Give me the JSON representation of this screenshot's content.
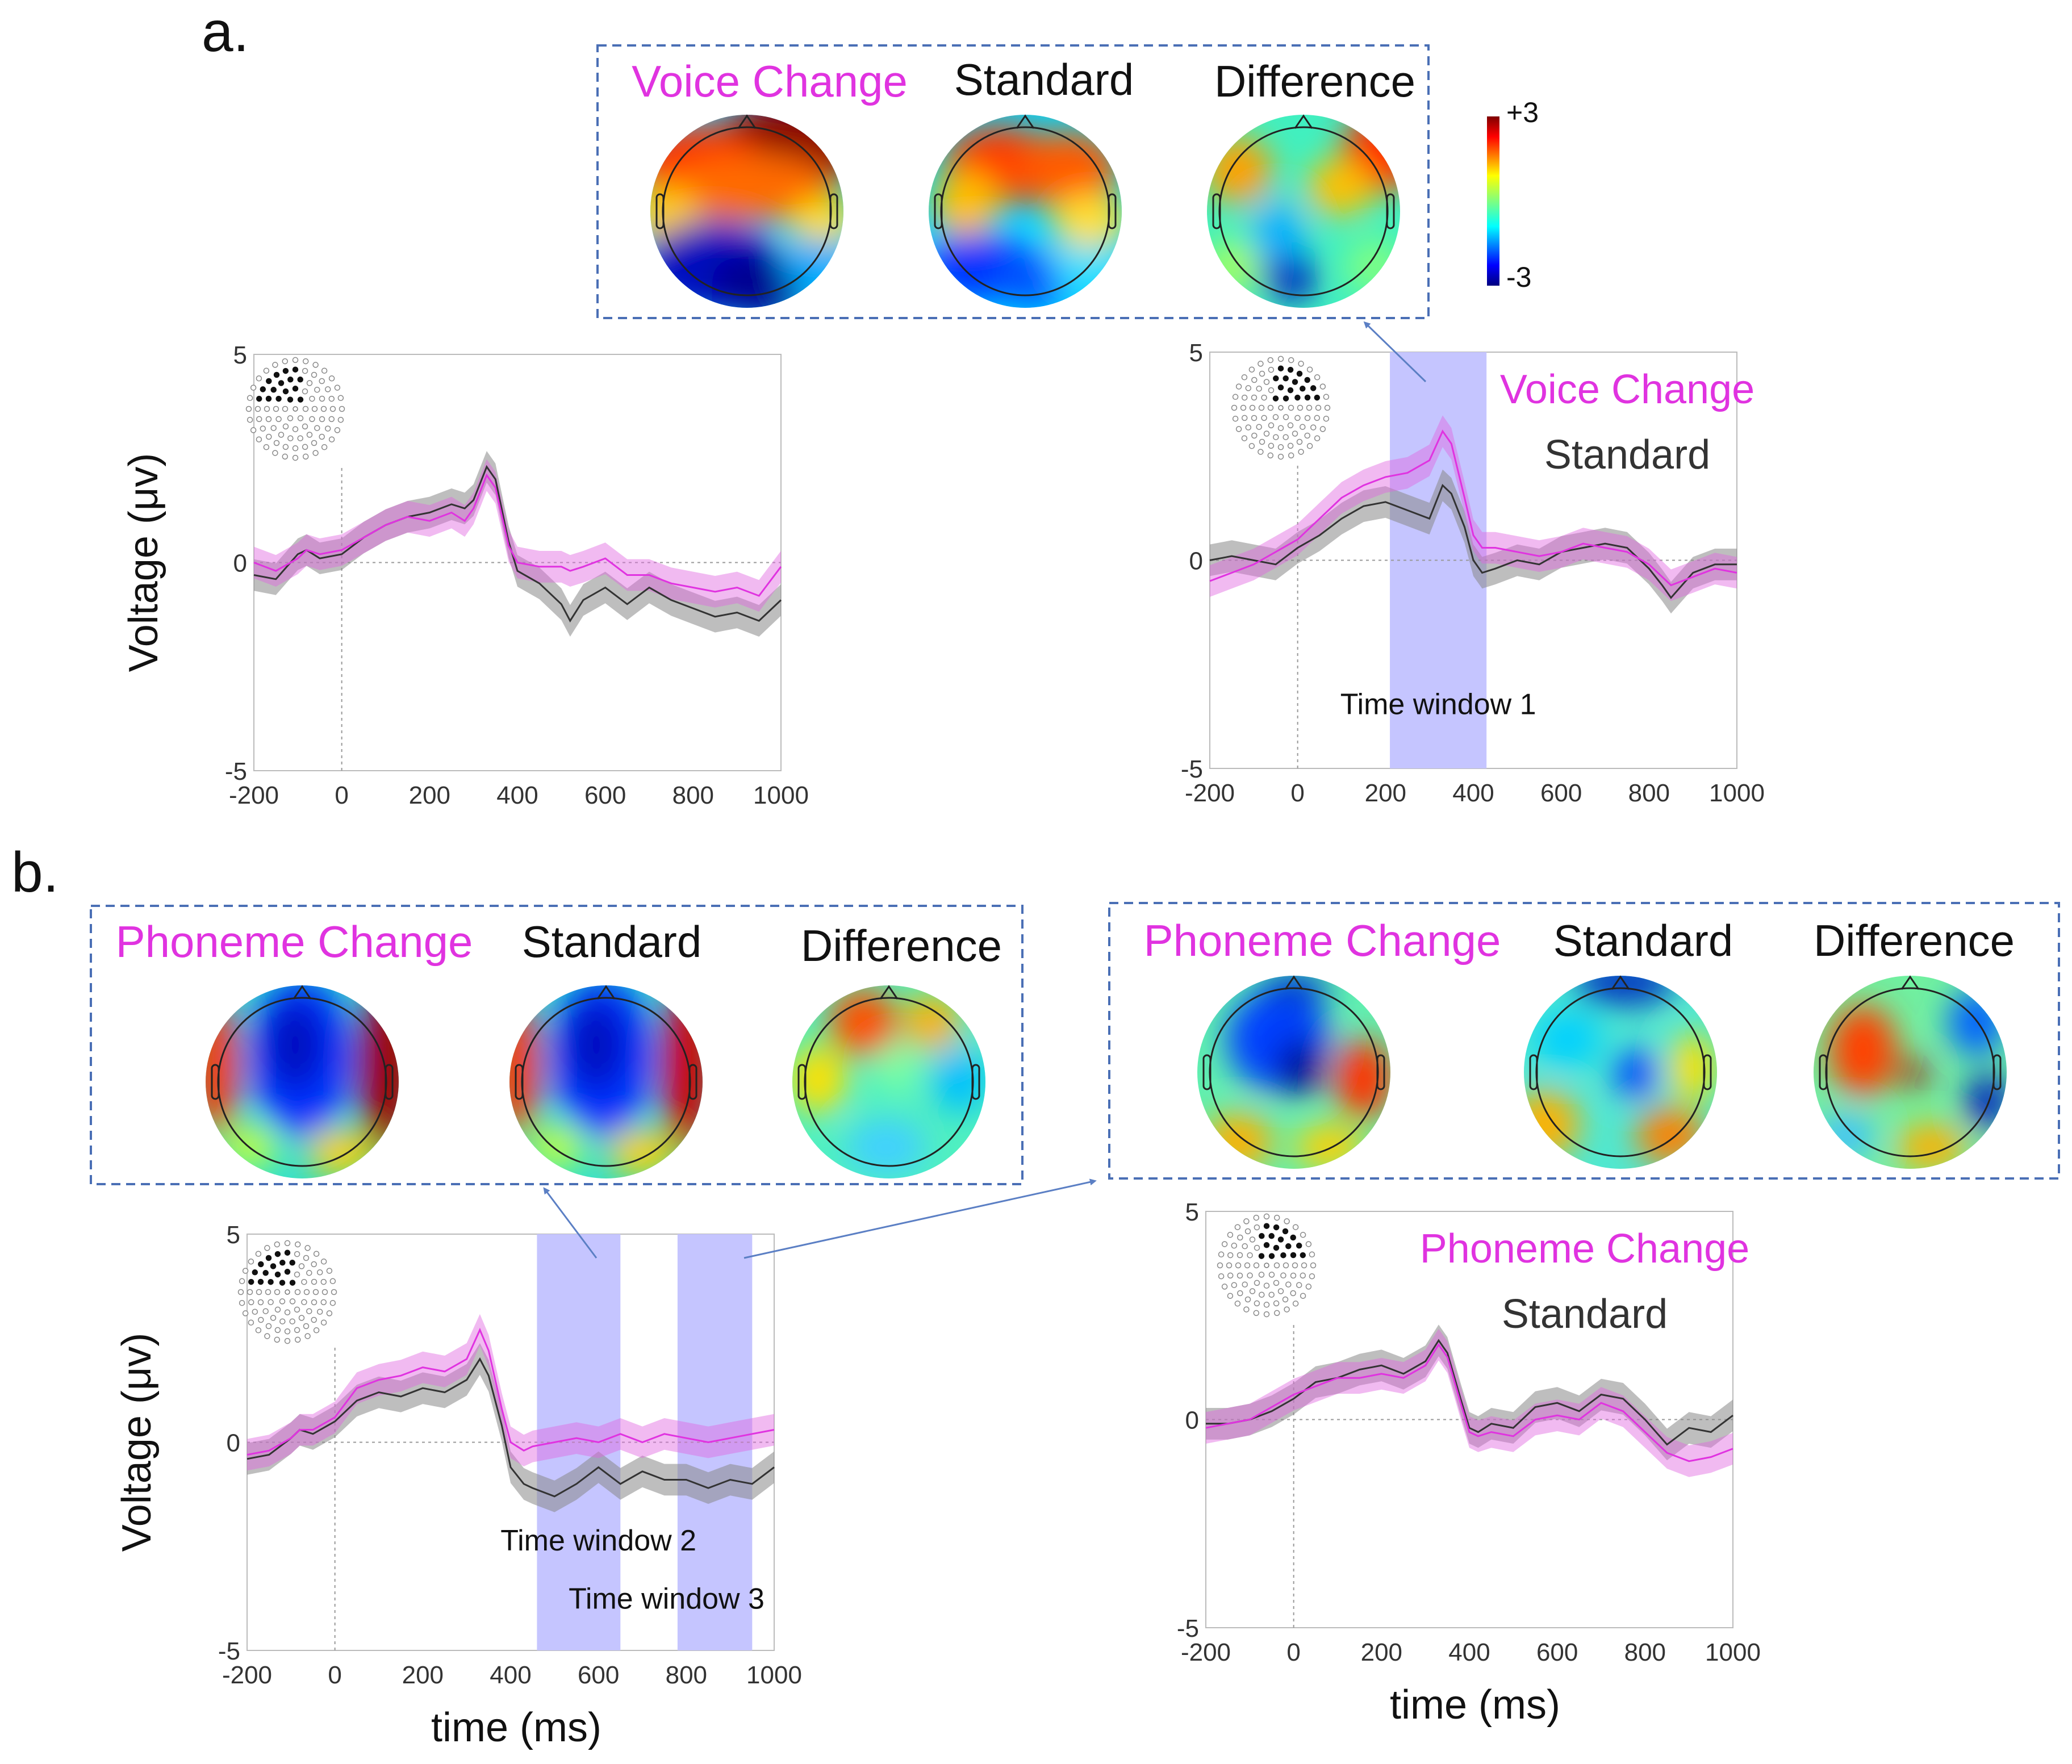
{
  "colors": {
    "magenta": "#e033e0",
    "black_trace": "#333333",
    "window": "#c5c5ff",
    "box_border": "#4a6fb5",
    "arrow": "#5b7fc4"
  },
  "panel_a": {
    "label": "a.",
    "topo_box_titles": [
      "Voice Change",
      "Standard",
      "Difference"
    ],
    "colorbar": {
      "max_label": "+3",
      "min_label": "-3"
    }
  },
  "panel_b": {
    "label": "b.",
    "topo_box_left_titles": [
      "Phoneme Change",
      "Standard",
      "Difference"
    ],
    "topo_box_right_titles": [
      "Phoneme Change",
      "Standard",
      "Difference"
    ]
  },
  "chart_data": [
    {
      "id": "a-left",
      "type": "line",
      "title": "",
      "xlabel": "",
      "ylabel": "Voltage (μv)",
      "xlim": [
        -200,
        1000
      ],
      "ylim": [
        -5,
        5
      ],
      "xticks": [
        "-200",
        "0",
        "200",
        "400",
        "600",
        "800",
        "1000"
      ],
      "yticks": [
        "-5",
        "0",
        "5"
      ],
      "windows": [],
      "legend": [],
      "electrode_side": "left",
      "series": [
        {
          "name": "Standard",
          "color": "#333333",
          "x": [
            -200,
            -150,
            -100,
            -80,
            -50,
            0,
            50,
            100,
            150,
            200,
            250,
            280,
            300,
            330,
            350,
            380,
            400,
            450,
            500,
            520,
            550,
            600,
            650,
            700,
            750,
            800,
            850,
            900,
            950,
            1000
          ],
          "y": [
            -0.3,
            -0.4,
            0.2,
            0.3,
            0.1,
            0.2,
            0.6,
            0.9,
            1.1,
            1.2,
            1.4,
            1.3,
            1.5,
            2.3,
            2.0,
            0.5,
            -0.2,
            -0.5,
            -1.0,
            -1.4,
            -0.9,
            -0.6,
            -1.0,
            -0.6,
            -0.9,
            -1.1,
            -1.3,
            -1.2,
            -1.4,
            -0.9
          ]
        },
        {
          "name": "Voice Change",
          "color": "#e033e0",
          "x": [
            -200,
            -150,
            -100,
            -80,
            -50,
            0,
            50,
            100,
            150,
            200,
            250,
            280,
            300,
            330,
            350,
            380,
            400,
            450,
            500,
            520,
            550,
            600,
            650,
            700,
            750,
            800,
            850,
            900,
            950,
            1000
          ],
          "y": [
            0.0,
            -0.2,
            0.1,
            0.3,
            0.2,
            0.3,
            0.6,
            0.9,
            1.1,
            1.0,
            1.2,
            1.0,
            1.3,
            2.1,
            1.8,
            0.4,
            0.0,
            -0.1,
            -0.1,
            -0.2,
            -0.1,
            0.1,
            -0.3,
            -0.3,
            -0.5,
            -0.6,
            -0.7,
            -0.6,
            -0.8,
            -0.1
          ]
        }
      ]
    },
    {
      "id": "a-right",
      "type": "line",
      "title": "",
      "xlabel": "",
      "ylabel": "",
      "xlim": [
        -200,
        1000
      ],
      "ylim": [
        -5,
        5
      ],
      "xticks": [
        "-200",
        "0",
        "200",
        "400",
        "600",
        "800",
        "1000"
      ],
      "yticks": [
        "-5",
        "0",
        "5"
      ],
      "windows": [
        {
          "from": 210,
          "to": 430,
          "label": "Time window 1"
        }
      ],
      "legend": [
        "Voice Change",
        "Standard"
      ],
      "electrode_side": "right",
      "series": [
        {
          "name": "Standard",
          "color": "#333333",
          "x": [
            -200,
            -150,
            -100,
            -50,
            0,
            50,
            100,
            150,
            200,
            250,
            300,
            330,
            350,
            380,
            400,
            420,
            450,
            500,
            550,
            600,
            650,
            700,
            750,
            800,
            830,
            850,
            900,
            950,
            1000
          ],
          "y": [
            0.0,
            0.1,
            0.0,
            -0.1,
            0.3,
            0.6,
            1.0,
            1.3,
            1.4,
            1.2,
            1.0,
            1.8,
            1.6,
            0.8,
            0.0,
            -0.3,
            -0.2,
            0.0,
            -0.1,
            0.2,
            0.3,
            0.4,
            0.3,
            -0.2,
            -0.6,
            -0.9,
            -0.3,
            -0.1,
            -0.1
          ]
        },
        {
          "name": "Voice Change",
          "color": "#e033e0",
          "x": [
            -200,
            -150,
            -100,
            -50,
            0,
            50,
            100,
            150,
            200,
            250,
            300,
            330,
            350,
            380,
            400,
            420,
            450,
            500,
            550,
            600,
            650,
            700,
            750,
            800,
            830,
            850,
            900,
            950,
            1000
          ],
          "y": [
            -0.5,
            -0.3,
            -0.1,
            0.2,
            0.5,
            1.0,
            1.5,
            1.8,
            2.0,
            2.1,
            2.4,
            3.1,
            2.8,
            1.5,
            0.6,
            0.3,
            0.3,
            0.2,
            0.1,
            0.2,
            0.4,
            0.3,
            0.2,
            -0.1,
            -0.4,
            -0.6,
            -0.4,
            -0.2,
            -0.3
          ]
        }
      ]
    },
    {
      "id": "b-left",
      "type": "line",
      "title": "",
      "xlabel": "time (ms)",
      "ylabel": "Voltage (μv)",
      "xlim": [
        -200,
        1000
      ],
      "ylim": [
        -5,
        5
      ],
      "xticks": [
        "-200",
        "0",
        "200",
        "400",
        "600",
        "800",
        "1000"
      ],
      "yticks": [
        "-5",
        "0",
        "5"
      ],
      "windows": [
        {
          "from": 460,
          "to": 650,
          "label": "Time window 2"
        },
        {
          "from": 780,
          "to": 950,
          "label": "Time window 3"
        }
      ],
      "legend": [],
      "electrode_side": "left",
      "series": [
        {
          "name": "Standard",
          "color": "#333333",
          "x": [
            -200,
            -150,
            -100,
            -80,
            -50,
            0,
            50,
            100,
            150,
            200,
            250,
            300,
            330,
            350,
            380,
            400,
            430,
            450,
            500,
            550,
            600,
            650,
            700,
            750,
            800,
            850,
            900,
            950,
            1000
          ],
          "y": [
            -0.4,
            -0.3,
            0.1,
            0.3,
            0.2,
            0.5,
            1.0,
            1.2,
            1.1,
            1.3,
            1.2,
            1.5,
            2.0,
            1.6,
            0.4,
            -0.6,
            -1.0,
            -1.1,
            -1.3,
            -1.0,
            -0.6,
            -1.0,
            -0.7,
            -0.9,
            -0.9,
            -1.1,
            -0.9,
            -1.0,
            -0.6
          ]
        },
        {
          "name": "Phoneme Change",
          "color": "#e033e0",
          "x": [
            -200,
            -150,
            -100,
            -80,
            -50,
            0,
            50,
            100,
            150,
            200,
            250,
            300,
            330,
            350,
            380,
            400,
            430,
            450,
            500,
            550,
            600,
            650,
            700,
            750,
            800,
            850,
            900,
            950,
            1000
          ],
          "y": [
            -0.3,
            -0.2,
            0.1,
            0.3,
            0.3,
            0.6,
            1.3,
            1.5,
            1.6,
            1.8,
            1.7,
            2.0,
            2.7,
            2.2,
            0.8,
            0.0,
            -0.2,
            -0.1,
            0.0,
            0.1,
            0.0,
            0.2,
            0.0,
            0.2,
            0.1,
            0.0,
            0.1,
            0.2,
            0.3
          ]
        }
      ]
    },
    {
      "id": "b-right",
      "type": "line",
      "title": "",
      "xlabel": "time (ms)",
      "ylabel": "",
      "xlim": [
        -200,
        1000
      ],
      "ylim": [
        -5,
        5
      ],
      "xticks": [
        "-200",
        "0",
        "200",
        "400",
        "600",
        "800",
        "1000"
      ],
      "yticks": [
        "-5",
        "0",
        "5"
      ],
      "windows": [],
      "legend": [
        "Phoneme Change",
        "Standard"
      ],
      "electrode_side": "right",
      "series": [
        {
          "name": "Standard",
          "color": "#333333",
          "x": [
            -200,
            -150,
            -100,
            -50,
            0,
            50,
            100,
            150,
            200,
            250,
            300,
            330,
            350,
            380,
            400,
            420,
            450,
            500,
            550,
            600,
            650,
            700,
            750,
            800,
            850,
            900,
            950,
            1000
          ],
          "y": [
            -0.1,
            -0.1,
            0.0,
            0.2,
            0.5,
            0.9,
            1.0,
            1.2,
            1.3,
            1.1,
            1.4,
            1.9,
            1.6,
            0.5,
            -0.2,
            -0.3,
            -0.1,
            -0.2,
            0.3,
            0.4,
            0.2,
            0.6,
            0.5,
            0.0,
            -0.6,
            -0.2,
            -0.3,
            0.1
          ]
        },
        {
          "name": "Phoneme Change",
          "color": "#e033e0",
          "x": [
            -200,
            -150,
            -100,
            -50,
            0,
            50,
            100,
            150,
            200,
            250,
            300,
            330,
            350,
            380,
            400,
            420,
            450,
            500,
            550,
            600,
            650,
            700,
            750,
            800,
            850,
            900,
            950,
            1000
          ],
          "y": [
            -0.2,
            -0.1,
            0.0,
            0.3,
            0.6,
            0.8,
            1.0,
            1.0,
            1.1,
            1.0,
            1.3,
            1.8,
            1.5,
            0.4,
            -0.3,
            -0.4,
            -0.3,
            -0.4,
            0.0,
            0.1,
            0.0,
            0.4,
            0.2,
            -0.3,
            -0.8,
            -1.0,
            -0.9,
            -0.7
          ]
        }
      ]
    }
  ]
}
